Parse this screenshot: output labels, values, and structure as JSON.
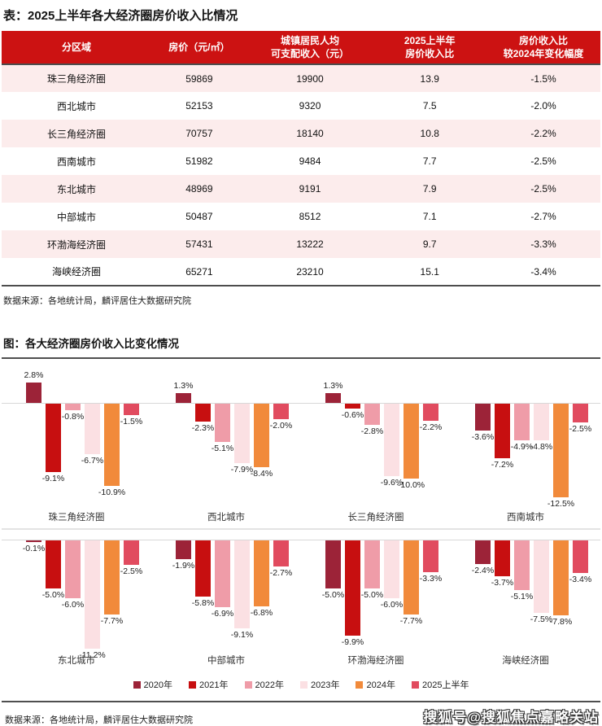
{
  "colors": {
    "header_red": "#cc1212",
    "row_pink": "#fcecec",
    "table_border_dark": "#4d4d4d",
    "zero_line": "#d8d8d8"
  },
  "table_section": {
    "title": "表：2025上半年各大经济圈房价收入比情况",
    "columns": [
      [
        "分区域"
      ],
      [
        "房价（元/㎡）"
      ],
      [
        "城镇居民人均",
        "可支配收入（元）"
      ],
      [
        "2025上半年",
        "房价收入比"
      ],
      [
        "房价收入比",
        "较2024年变化幅度"
      ]
    ],
    "rows": [
      [
        "珠三角经济圈",
        "59869",
        "19900",
        "13.9",
        "-1.5%"
      ],
      [
        "西北城市",
        "52153",
        "9320",
        "7.5",
        "-2.0%"
      ],
      [
        "长三角经济圈",
        "70757",
        "18140",
        "10.8",
        "-2.2%"
      ],
      [
        "西南城市",
        "51982",
        "9484",
        "7.7",
        "-2.5%"
      ],
      [
        "东北城市",
        "48969",
        "9191",
        "7.9",
        "-2.5%"
      ],
      [
        "中部城市",
        "50487",
        "8512",
        "7.1",
        "-2.7%"
      ],
      [
        "环渤海经济圈",
        "57431",
        "13222",
        "9.7",
        "-3.3%"
      ],
      [
        "海峡经济圈",
        "65271",
        "23210",
        "15.1",
        "-3.4%"
      ]
    ],
    "source": "数据来源：各地统计局，麟评居住大数据研究院"
  },
  "chart_section": {
    "title": "图：各大经济圈房价收入比变化情况",
    "source": "数据来源：各地统计局，麟评居住大数据研究院",
    "watermark": "搜狐号@搜狐焦点嘉略关站"
  },
  "chart_data": {
    "type": "bar",
    "unit": "%",
    "title": "各大经济圈房价收入比变化情况",
    "legend_position": "bottom",
    "grid": false,
    "row_split": 4,
    "row1_ylim": [
      -12.5,
      2.8
    ],
    "row2_ylim": [
      -11.2,
      0
    ],
    "series_names": [
      "2020年",
      "2021年",
      "2022年",
      "2023年",
      "2024年",
      "2025上半年"
    ],
    "series_colors": [
      "#9c2338",
      "#c70f10",
      "#ef9ca8",
      "#fbe0e3",
      "#f18a3b",
      "#e14b5f"
    ],
    "groups": [
      {
        "label": "珠三角经济圈",
        "values": [
          2.8,
          -9.1,
          -0.8,
          -6.7,
          -10.9,
          -1.5
        ]
      },
      {
        "label": "西北城市",
        "values": [
          1.3,
          -2.3,
          -5.1,
          -7.9,
          -8.4,
          -2.0
        ]
      },
      {
        "label": "长三角经济圈",
        "values": [
          1.3,
          -0.6,
          -2.8,
          -9.6,
          -10.0,
          -2.2
        ]
      },
      {
        "label": "西南城市",
        "values": [
          -3.6,
          -7.2,
          -4.9,
          -4.8,
          -12.5,
          -2.5
        ]
      },
      {
        "label": "东北城市",
        "values": [
          -0.1,
          -5.0,
          -6.0,
          -11.2,
          -7.7,
          -2.5
        ]
      },
      {
        "label": "中部城市",
        "values": [
          -1.9,
          -5.8,
          -6.9,
          -9.1,
          -6.8,
          -2.7
        ]
      },
      {
        "label": "环渤海经济圈",
        "values": [
          -5.0,
          -9.9,
          -5.0,
          -6.0,
          -7.7,
          -3.3
        ]
      },
      {
        "label": "海峡经济圈",
        "values": [
          -2.4,
          -3.7,
          -5.1,
          -7.5,
          -7.8,
          -3.4
        ]
      }
    ]
  }
}
